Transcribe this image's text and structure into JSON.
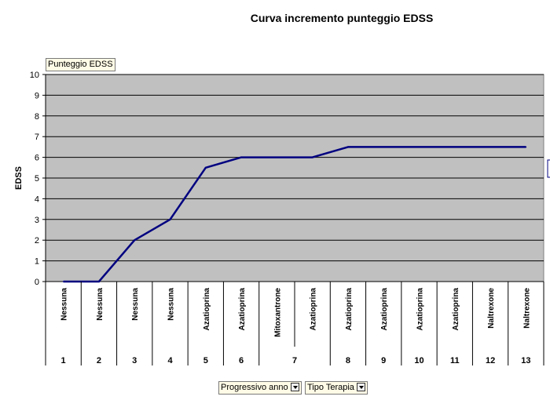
{
  "chart_data": {
    "type": "line",
    "title": "Curva incremento punteggio EDSS",
    "ylabel": "EDSS",
    "ylim": [
      0,
      10
    ],
    "yticks": [
      0,
      1,
      2,
      3,
      4,
      5,
      6,
      7,
      8,
      9,
      10
    ],
    "grid": true,
    "series": [
      {
        "name": "Punteggio EDSS",
        "values": [
          0,
          0,
          2,
          3,
          5.5,
          6,
          6,
          6,
          6.5,
          6.5,
          6.5,
          6.5,
          6.5,
          6.5
        ],
        "color": "#000080"
      }
    ],
    "categories_terapia": [
      "Nessuna",
      "Nessuna",
      "Nessuna",
      "Nessuna",
      "Azatioprina",
      "Azatioprina",
      "Mitoxantrone",
      "Azatioprina",
      "Azatioprina",
      "Azatioprina",
      "Azatioprina",
      "Azatioprina",
      "Naltrexone",
      "Naltrexone"
    ],
    "categories_anno": [
      {
        "label": "1",
        "span": 1
      },
      {
        "label": "2",
        "span": 1
      },
      {
        "label": "3",
        "span": 1
      },
      {
        "label": "4",
        "span": 1
      },
      {
        "label": "5",
        "span": 1
      },
      {
        "label": "6",
        "span": 1
      },
      {
        "label": "7",
        "span": 2
      },
      {
        "label": "8",
        "span": 1
      },
      {
        "label": "9",
        "span": 1
      },
      {
        "label": "10",
        "span": 1
      },
      {
        "label": "11",
        "span": 1
      },
      {
        "label": "12",
        "span": 1
      },
      {
        "label": "13",
        "span": 1
      }
    ],
    "plot_background": "#c0c0c0"
  },
  "data_field": {
    "label": "Punteggio EDSS"
  },
  "row_fields": [
    {
      "label": "Progressivo anno"
    },
    {
      "label": "Tipo Terapia"
    }
  ]
}
